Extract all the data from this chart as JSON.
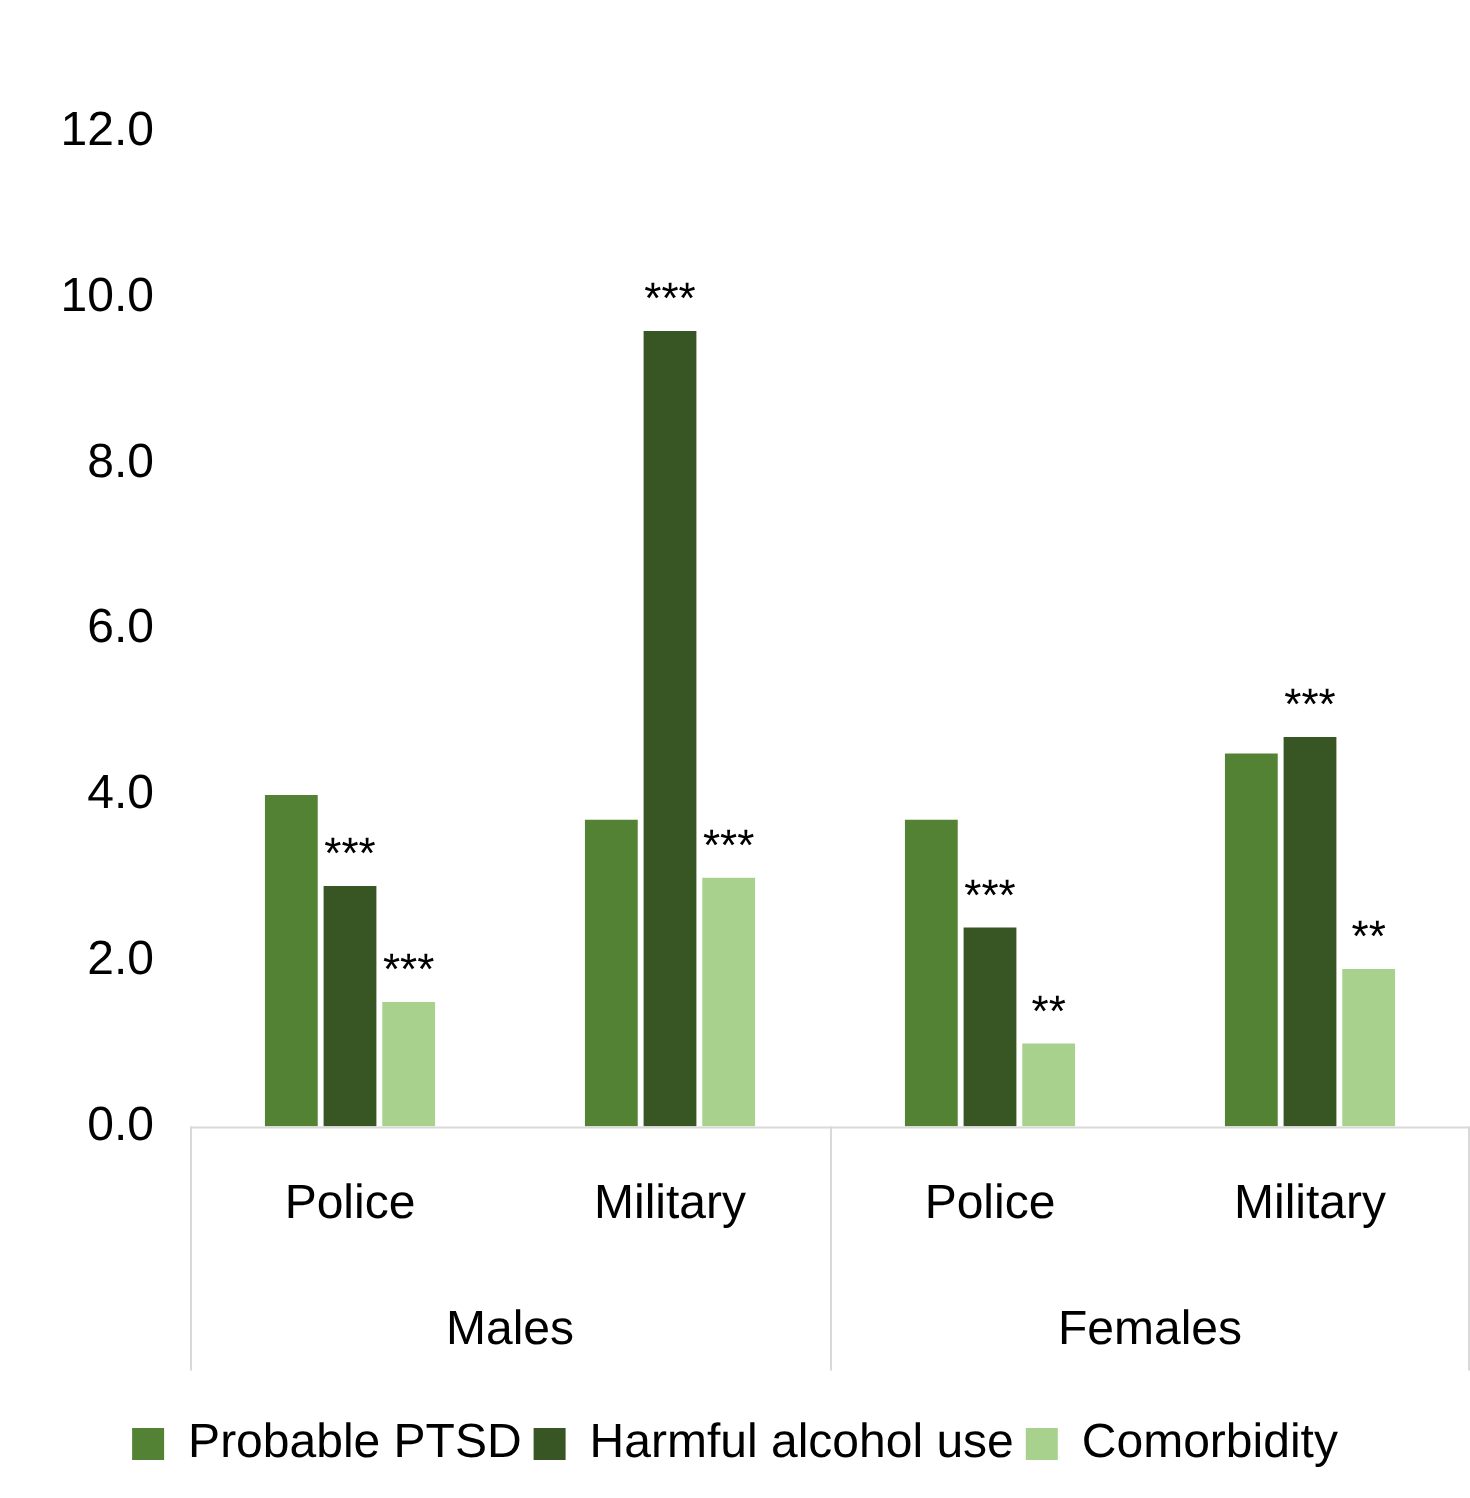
{
  "chart_data": {
    "type": "bar",
    "categories": [
      "Police",
      "Military",
      "Police",
      "Military"
    ],
    "series": [
      {
        "name": "Probable PTSD",
        "color": "#548235",
        "values": [
          4.0,
          3.7,
          3.7,
          4.5
        ]
      },
      {
        "name": "Harmful alcohol use",
        "color": "#375623",
        "values": [
          2.9,
          9.6,
          2.4,
          4.7
        ],
        "value_labels": [
          "***",
          "***",
          "***",
          "***"
        ]
      },
      {
        "name": "Comorbidity",
        "color": "#a9d18e",
        "values": [
          1.5,
          3.0,
          1.0,
          1.9
        ],
        "value_labels": [
          "***",
          "***",
          "**",
          "**"
        ]
      }
    ],
    "annotations": [
      "Males",
      "Females"
    ],
    "ylim": [
      0,
      12
    ],
    "yticks": [
      {
        "value": 0,
        "label": "0.0"
      },
      {
        "value": 2,
        "label": "2.0"
      },
      {
        "value": 4,
        "label": "4.0"
      },
      {
        "value": 6,
        "label": "6.0"
      },
      {
        "value": 8,
        "label": "8.0"
      },
      {
        "value": 10,
        "label": "10.0"
      },
      {
        "value": 12,
        "label": "12.0"
      }
    ],
    "grid": false,
    "legend": "bottom"
  }
}
